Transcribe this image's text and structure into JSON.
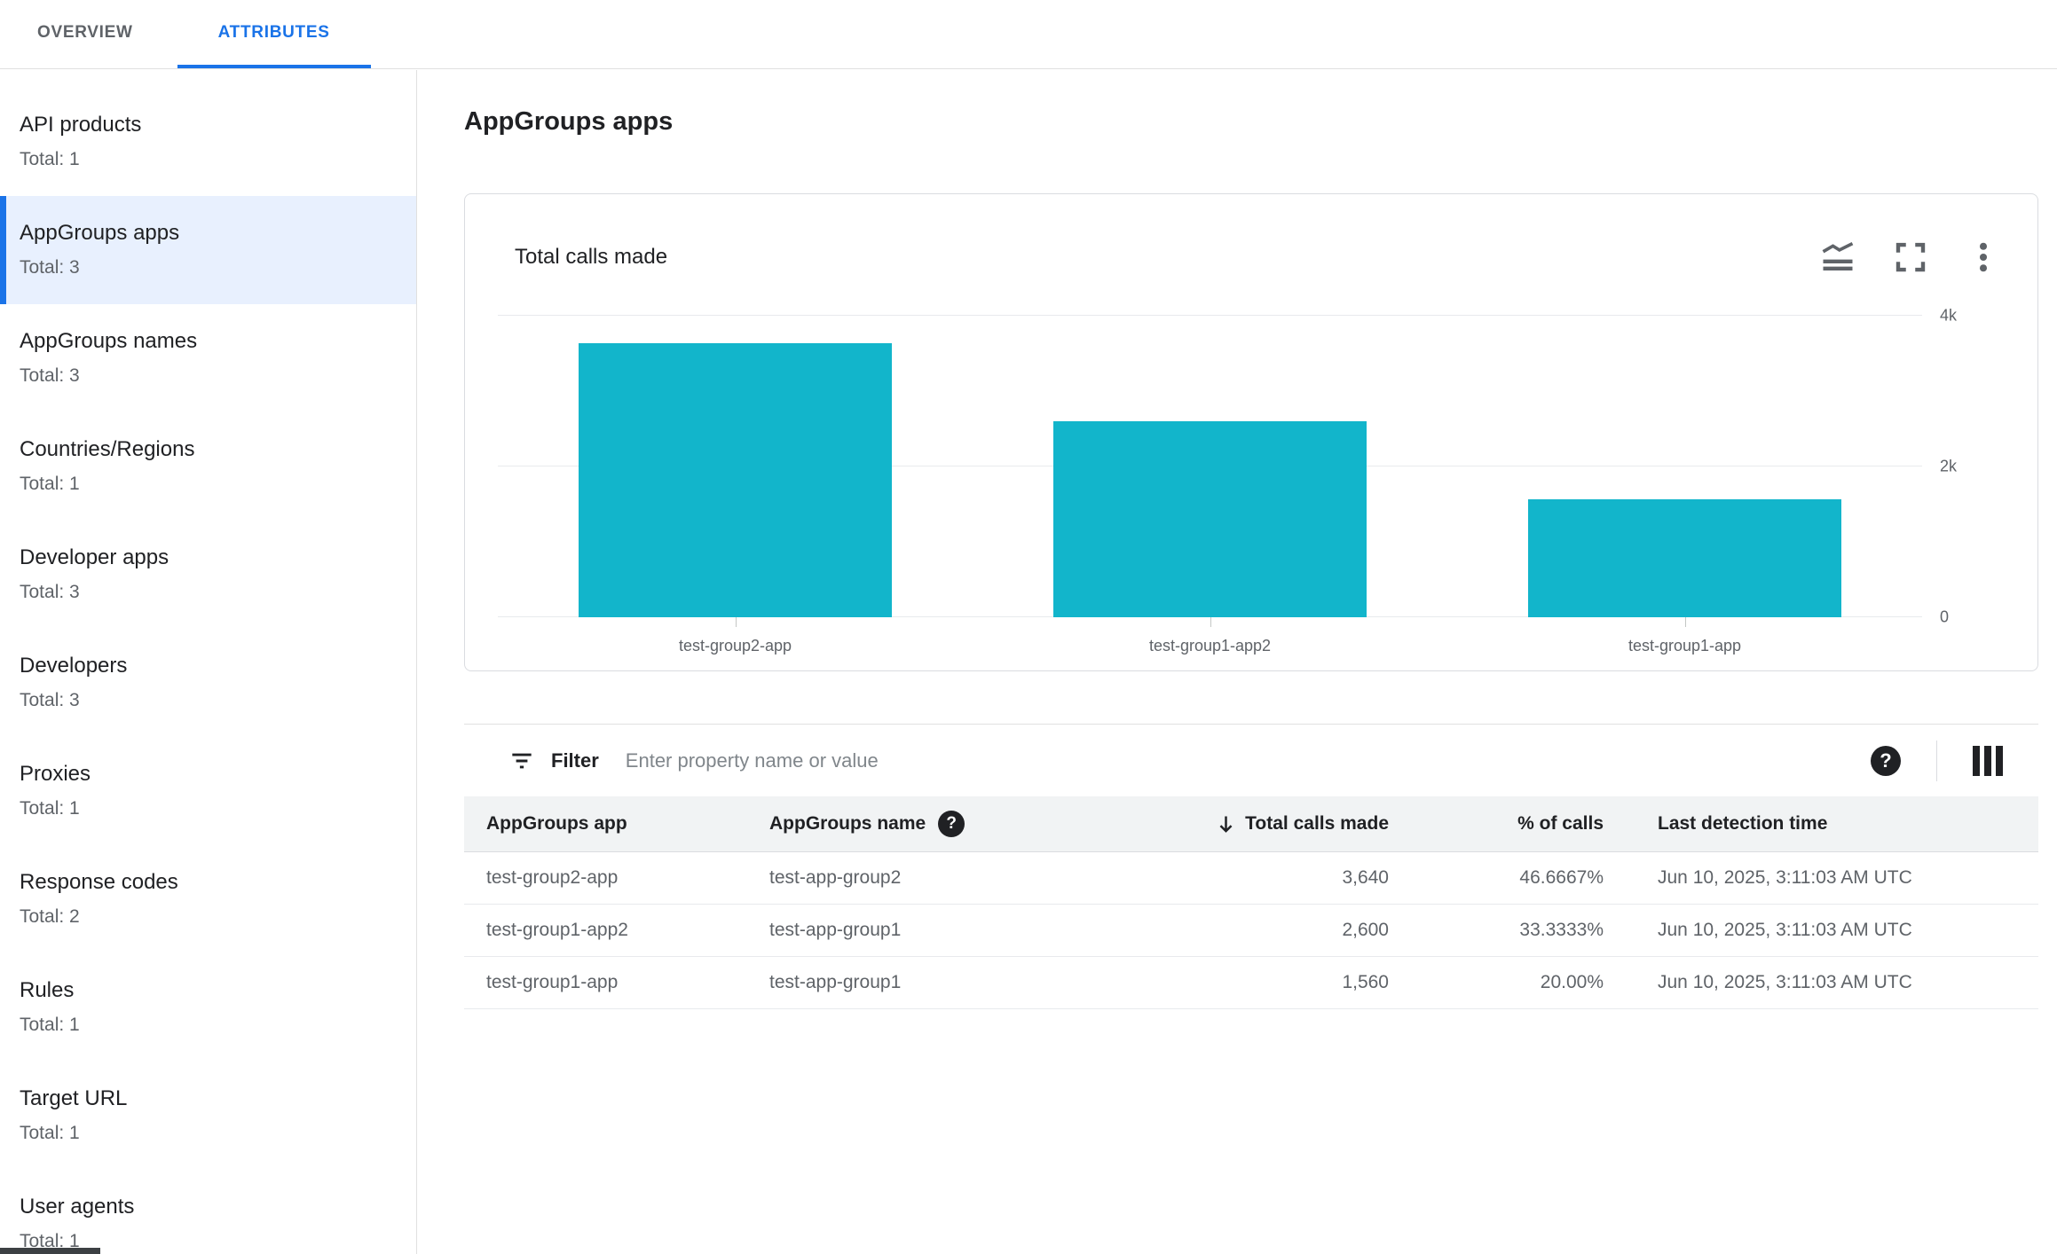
{
  "tabs": [
    {
      "label": "OVERVIEW",
      "active": false
    },
    {
      "label": "ATTRIBUTES",
      "active": true
    }
  ],
  "sidebar": {
    "items": [
      {
        "label": "API products",
        "total": "Total: 1"
      },
      {
        "label": "AppGroups apps",
        "total": "Total: 3",
        "selected": true
      },
      {
        "label": "AppGroups names",
        "total": "Total: 3"
      },
      {
        "label": "Countries/Regions",
        "total": "Total: 1"
      },
      {
        "label": "Developer apps",
        "total": "Total: 3"
      },
      {
        "label": "Developers",
        "total": "Total: 3"
      },
      {
        "label": "Proxies",
        "total": "Total: 1"
      },
      {
        "label": "Response codes",
        "total": "Total: 2"
      },
      {
        "label": "Rules",
        "total": "Total: 1"
      },
      {
        "label": "Target URL",
        "total": "Total: 1"
      },
      {
        "label": "User agents",
        "total": "Total: 1"
      }
    ]
  },
  "main": {
    "title": "AppGroups apps",
    "chart_card": {
      "title": "Total calls made",
      "icons": [
        "chart-type-icon",
        "fullscreen-icon",
        "more-vert-icon"
      ]
    },
    "filter": {
      "label": "Filter",
      "placeholder": "Enter property name or value",
      "help_glyph": "?",
      "icons": [
        "filter-icon",
        "help-icon",
        "columns-icon"
      ]
    },
    "table": {
      "columns": [
        "AppGroups app",
        "AppGroups name",
        "Total calls made",
        "% of calls",
        "Last detection time"
      ],
      "sorted_by": "Total calls made",
      "sort_direction": "descending",
      "rows": [
        {
          "app": "test-group2-app",
          "name": "test-app-group2",
          "calls": "3,640",
          "pct": "46.6667%",
          "time": "Jun 10, 2025, 3:11:03 AM UTC"
        },
        {
          "app": "test-group1-app2",
          "name": "test-app-group1",
          "calls": "2,600",
          "pct": "33.3333%",
          "time": "Jun 10, 2025, 3:11:03 AM UTC"
        },
        {
          "app": "test-group1-app",
          "name": "test-app-group1",
          "calls": "1,560",
          "pct": "20.00%",
          "time": "Jun 10, 2025, 3:11:03 AM UTC"
        }
      ]
    }
  },
  "chart_data": {
    "type": "bar",
    "title": "Total calls made",
    "categories": [
      "test-group2-app",
      "test-group1-app2",
      "test-group1-app"
    ],
    "values": [
      3640,
      2600,
      1560
    ],
    "ylim": [
      0,
      4000
    ],
    "yticks": [
      {
        "value": 0,
        "label": "0"
      },
      {
        "value": 2000,
        "label": "2k"
      },
      {
        "value": 4000,
        "label": "4k"
      }
    ],
    "bar_color": "#12b5cb",
    "grid": true,
    "legend": "none",
    "y_axis_side": "right"
  },
  "colors": {
    "accent": "#1a73e8",
    "bar": "#12b5cb",
    "selected_bg": "#e8f0fe"
  }
}
